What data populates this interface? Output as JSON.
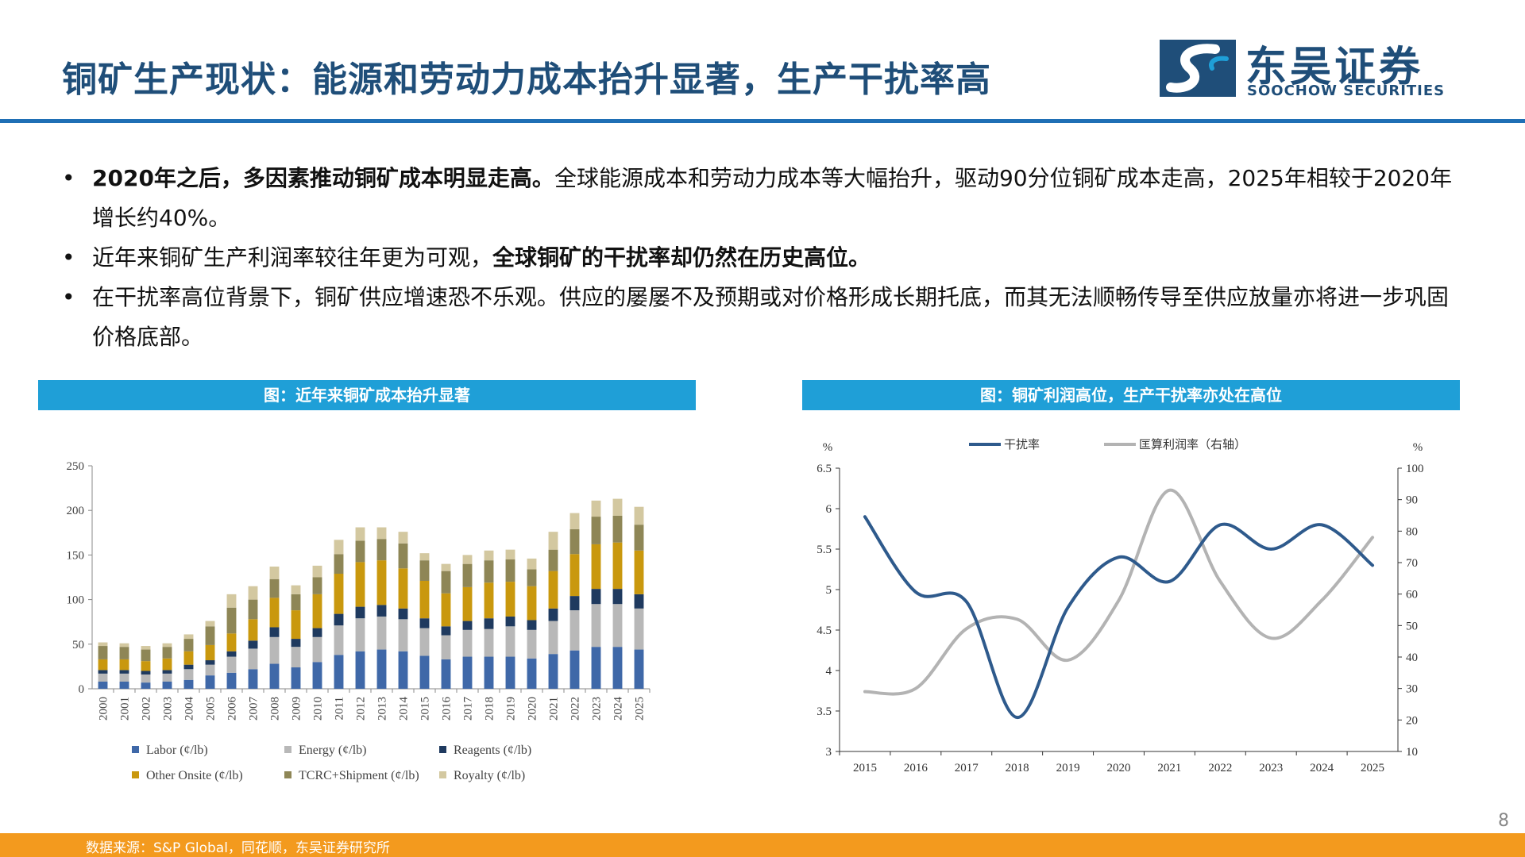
{
  "title": "铜矿生产现状：能源和劳动力成本抬升显著，生产干扰率高",
  "logo": {
    "cn": "东吴证券",
    "en": "SOOCHOW SECURITIES"
  },
  "bullets": [
    {
      "bold": "2020年之后，多因素推动铜矿成本明显走高。",
      "text": "全球能源成本和劳动力成本等大幅抬升，驱动90分位铜矿成本走高，2025年相较于2020年增长约40%。"
    },
    {
      "bold": "",
      "text": "近年来铜矿生产利润率较往年更为可观，",
      "bold2": "全球铜矿的干扰率却仍然在历史高位。"
    },
    {
      "bold": "",
      "text": "在干扰率高位背景下，铜矿供应增速恐不乐观。供应的屡屡不及预期或对价格形成长期托底，而其无法顺畅传导至供应放量亦将进一步巩固价格底部。"
    }
  ],
  "panels": {
    "left_title": "图：近年来铜矿成本抬升显著",
    "right_title": "图：铜矿利润高位，生产干扰率亦处在高位"
  },
  "footer": {
    "source": "数据来源：S&P Global，同花顺，东吴证券研究所",
    "page": "8"
  },
  "colors": {
    "title": "#1f4e79",
    "rule": "#1f6fb5",
    "panel": "#1f9fd7",
    "footer": "#f39a1e"
  },
  "chart_data": [
    {
      "type": "bar",
      "stacked": true,
      "categories": [
        "2000",
        "2001",
        "2002",
        "2003",
        "2004",
        "2005",
        "2006",
        "2007",
        "2008",
        "2009",
        "2010",
        "2011",
        "2012",
        "2013",
        "2014",
        "2015",
        "2016",
        "2017",
        "2018",
        "2019",
        "2020",
        "2021",
        "2022",
        "2023",
        "2024",
        "2025"
      ],
      "ylim": [
        0,
        250
      ],
      "yticks": [
        0,
        50,
        100,
        150,
        200,
        250
      ],
      "legend_position": "bottom",
      "series": [
        {
          "name": "Labor (¢/lb)",
          "color": "#3f68a8",
          "values": [
            8,
            8,
            7,
            8,
            10,
            15,
            18,
            22,
            28,
            24,
            30,
            38,
            42,
            44,
            42,
            37,
            33,
            36,
            36,
            36,
            34,
            39,
            43,
            47,
            47,
            44
          ]
        },
        {
          "name": "Energy (¢/lb)",
          "color": "#b8b8b8",
          "values": [
            9,
            9,
            9,
            9,
            12,
            12,
            18,
            23,
            30,
            23,
            28,
            33,
            37,
            37,
            36,
            31,
            27,
            30,
            31,
            34,
            32,
            37,
            45,
            48,
            48,
            46
          ]
        },
        {
          "name": "Reagents (¢/lb)",
          "color": "#1f3a5f",
          "values": [
            4,
            4,
            4,
            4,
            5,
            5,
            6,
            9,
            11,
            9,
            10,
            13,
            13,
            13,
            12,
            11,
            10,
            10,
            12,
            11,
            11,
            14,
            16,
            17,
            17,
            16
          ]
        },
        {
          "name": "Other Onsite (¢/lb)",
          "color": "#c9980e",
          "values": [
            12,
            12,
            11,
            13,
            15,
            17,
            20,
            24,
            33,
            32,
            38,
            45,
            50,
            50,
            45,
            42,
            37,
            38,
            40,
            39,
            38,
            42,
            47,
            50,
            52,
            49
          ]
        },
        {
          "name": "TCRC+Shipment (¢/lb)",
          "color": "#8e8656",
          "values": [
            15,
            14,
            13,
            13,
            14,
            21,
            29,
            22,
            21,
            18,
            19,
            22,
            24,
            24,
            28,
            23,
            25,
            26,
            25,
            25,
            19,
            24,
            28,
            31,
            30,
            29
          ]
        },
        {
          "name": "Royalty (¢/lb)",
          "color": "#d3c8a0",
          "values": [
            4,
            4,
            4,
            4,
            5,
            6,
            15,
            15,
            14,
            10,
            13,
            16,
            15,
            13,
            13,
            8,
            8,
            10,
            11,
            11,
            12,
            20,
            18,
            18,
            19,
            20
          ]
        }
      ]
    },
    {
      "type": "line",
      "x": [
        "2015",
        "2016",
        "2017",
        "2018",
        "2019",
        "2020",
        "2021",
        "2022",
        "2023",
        "2024",
        "2025"
      ],
      "ylim_left": [
        3,
        6.5
      ],
      "yticks_left": [
        "3",
        "3.5",
        "4",
        "4.5",
        "5",
        "5.5",
        "6",
        "6.5"
      ],
      "ylim_right": [
        10,
        100
      ],
      "yticks_right": [
        "10",
        "20",
        "30",
        "40",
        "50",
        "60",
        "70",
        "80",
        "90",
        "100"
      ],
      "ylabel_left": "%",
      "ylabel_right": "%",
      "legend_position": "top",
      "series": [
        {
          "name": "干扰率",
          "axis": "left",
          "color": "#2e5a8c",
          "values": [
            5.9,
            4.97,
            4.85,
            3.42,
            4.78,
            5.4,
            5.1,
            5.8,
            5.5,
            5.8,
            5.3
          ]
        },
        {
          "name": "匡算利润率（右轴）",
          "axis": "right",
          "color": "#b3b3b3",
          "values": [
            29,
            30,
            49,
            52,
            39,
            58,
            93,
            64,
            46,
            58,
            78
          ]
        }
      ]
    }
  ]
}
